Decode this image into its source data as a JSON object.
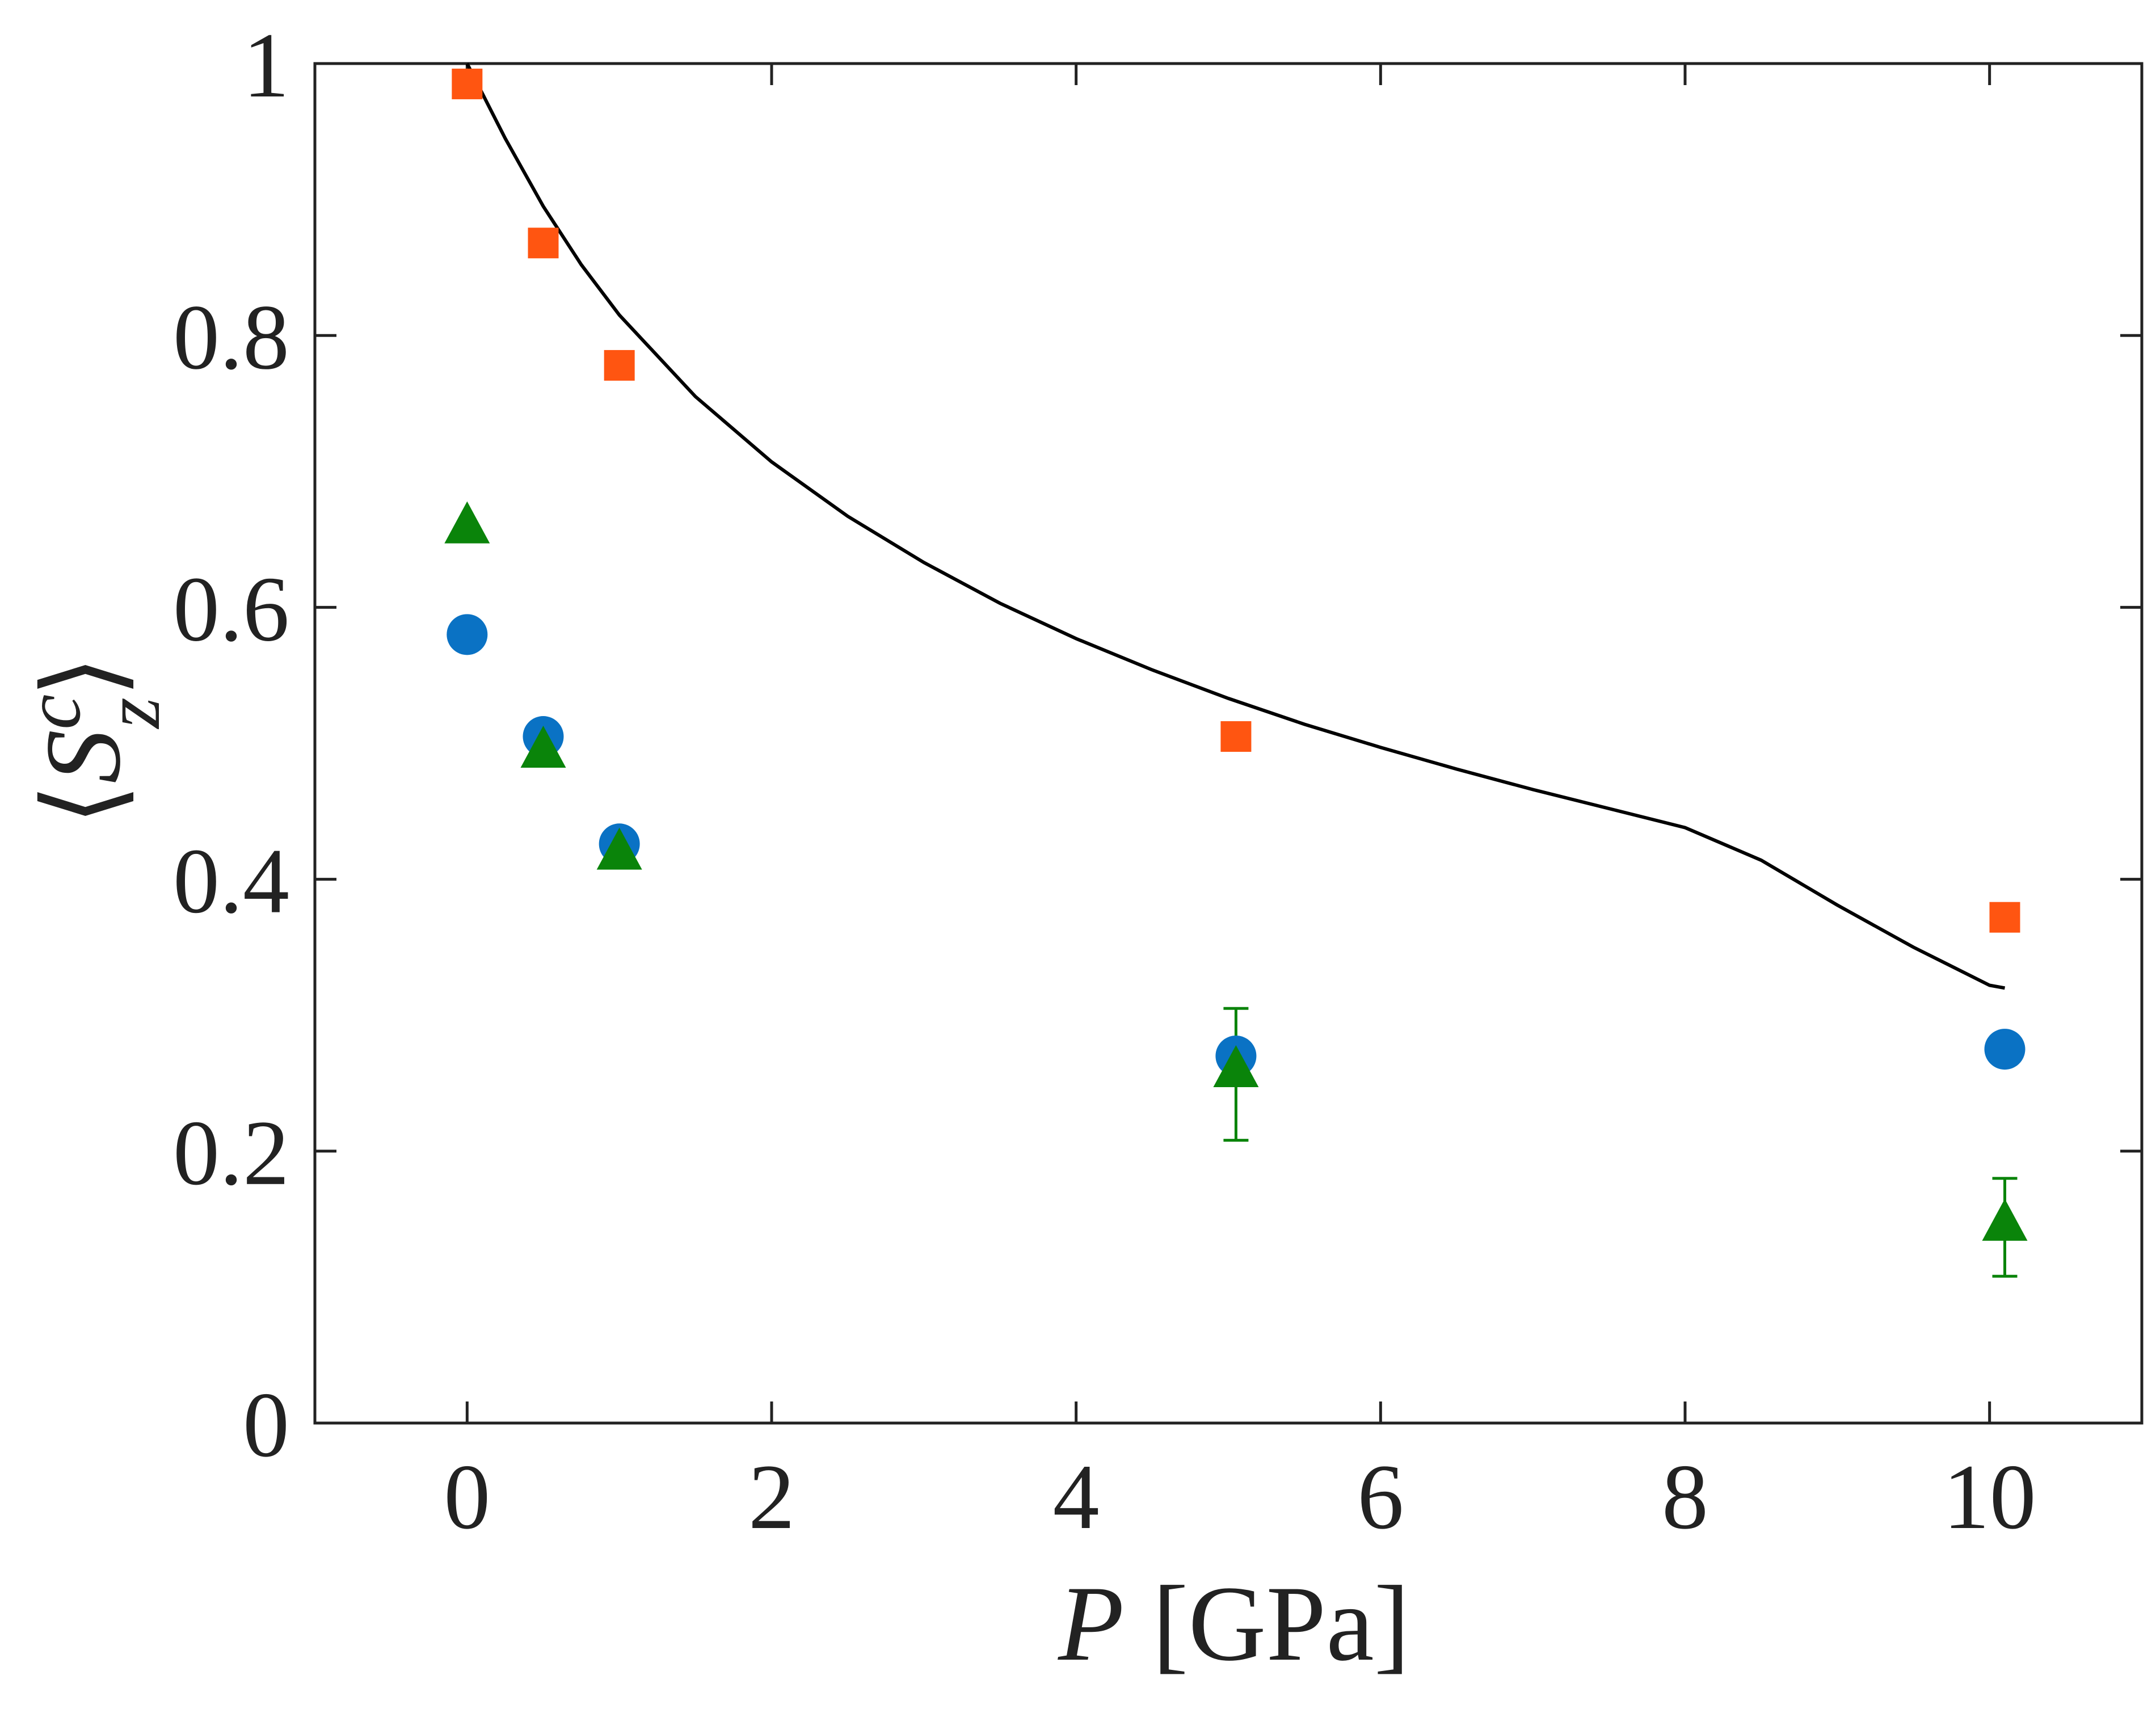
{
  "chart_data": {
    "type": "scatter",
    "title": "",
    "xlabel": {
      "symbol": "P",
      "unit": "[GPa]"
    },
    "ylabel": {
      "base": "S",
      "sup": "c",
      "sub": "z"
    },
    "xlim": [
      -1,
      11
    ],
    "ylim": [
      0,
      1
    ],
    "xticks": [
      0,
      2,
      4,
      6,
      8,
      10
    ],
    "yticks": [
      0,
      0.2,
      0.4,
      0.6,
      0.8,
      1
    ],
    "xtick_labels": [
      "0",
      "2",
      "4",
      "6",
      "8",
      "10"
    ],
    "ytick_labels": [
      "0",
      "0.2",
      "0.4",
      "0.6",
      "0.8",
      "1"
    ],
    "grid": false,
    "series": [
      {
        "name": "squares",
        "marker": "square",
        "color": "#ff5511",
        "x": [
          0,
          0.5,
          1.0,
          5.05,
          10.1
        ],
        "y": [
          0.985,
          0.868,
          0.778,
          0.505,
          0.372
        ]
      },
      {
        "name": "circles",
        "marker": "circle",
        "color": "#0a72c4",
        "x": [
          0,
          0.5,
          1.0,
          5.05,
          10.1
        ],
        "y": [
          0.58,
          0.505,
          0.426,
          0.27,
          0.275
        ]
      },
      {
        "name": "triangles",
        "marker": "triangle",
        "color": "#0a840a",
        "x": [
          0,
          0.5,
          1.0,
          5.05,
          10.1
        ],
        "y": [
          0.66,
          0.495,
          0.42,
          0.26,
          0.147
        ],
        "err_low": [
          null,
          null,
          null,
          0.208,
          0.108
        ],
        "err_high": [
          null,
          null,
          null,
          0.305,
          0.18
        ]
      }
    ],
    "fit_line": {
      "name": "fit-curve",
      "color": "#000000",
      "x": [
        0,
        0.25,
        0.5,
        0.75,
        1.0,
        1.5,
        2.0,
        2.5,
        3.0,
        3.5,
        4.0,
        4.5,
        5.0,
        5.5,
        6.0,
        6.5,
        7.0,
        7.5,
        8.0,
        8.5,
        9.0,
        9.5,
        10.0,
        10.1
      ],
      "y": [
        1.0,
        0.945,
        0.895,
        0.852,
        0.815,
        0.755,
        0.707,
        0.667,
        0.633,
        0.603,
        0.577,
        0.554,
        0.533,
        0.514,
        0.497,
        0.481,
        0.466,
        0.452,
        0.438,
        0.414,
        0.381,
        0.35,
        0.322,
        0.32
      ]
    }
  }
}
